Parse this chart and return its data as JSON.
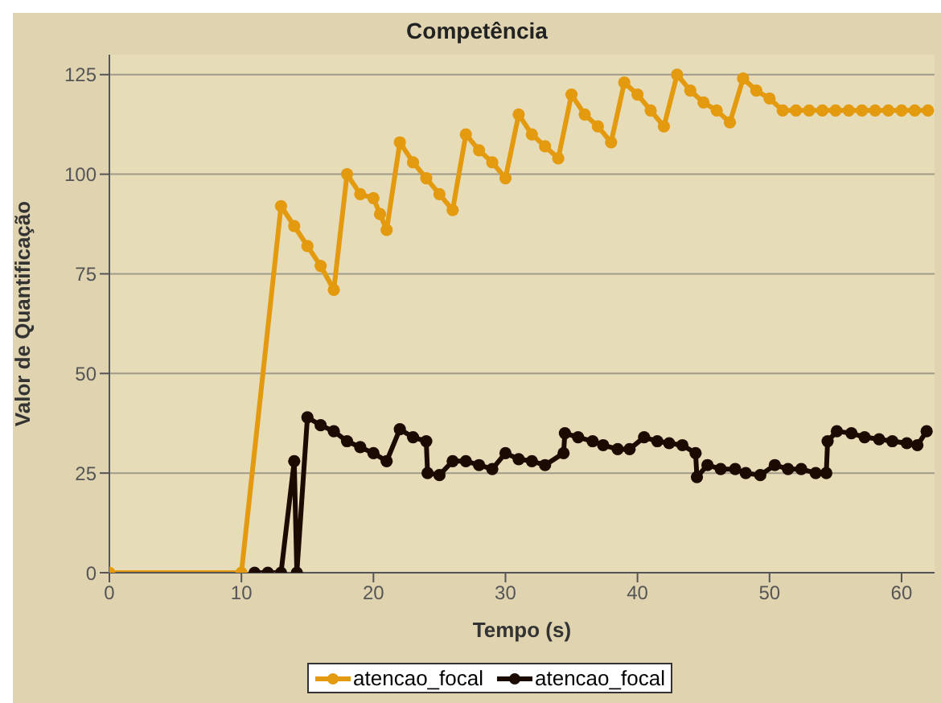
{
  "chart_data": {
    "type": "line",
    "title": "Competência",
    "xlabel": "Tempo (s)",
    "ylabel": "Valor de Quantificação",
    "xlim": [
      0,
      62.5
    ],
    "xticks": [
      0,
      10,
      20,
      30,
      40,
      50,
      60
    ],
    "ylim": [
      0,
      130
    ],
    "yticks": [
      0,
      25,
      50,
      75,
      100,
      125
    ],
    "grid": "y",
    "legend": "bottom",
    "marker": "circle",
    "line_style": "solid",
    "series": [
      {
        "name": "atencao_focal",
        "color": "#e39a0f",
        "x": [
          0,
          10,
          13,
          14,
          15,
          16,
          17,
          18,
          19,
          20,
          20.5,
          21,
          22,
          23,
          24,
          25,
          26,
          27,
          28,
          29,
          30,
          31,
          32,
          33,
          34,
          35,
          36,
          37,
          38,
          39,
          40,
          41,
          42,
          43,
          44,
          45,
          46,
          47,
          48,
          49,
          50,
          51,
          52,
          53,
          54,
          55,
          56,
          57,
          58,
          59,
          60,
          61,
          62
        ],
        "values": [
          0,
          0,
          92,
          87,
          82,
          77,
          71,
          100,
          95,
          94,
          90,
          86,
          108,
          103,
          99,
          95,
          91,
          110,
          106,
          103,
          99,
          115,
          110,
          107,
          104,
          120,
          115,
          112,
          108,
          123,
          120,
          116,
          112,
          125,
          121,
          118,
          116,
          113,
          124,
          121,
          119,
          116,
          116,
          116,
          116,
          116,
          116,
          116,
          116,
          116,
          116,
          116,
          116
        ]
      },
      {
        "name": "atencao_focal",
        "color": "#1a0a00",
        "x": [
          11,
          12,
          13,
          14,
          14.2,
          15,
          16,
          17,
          18,
          19,
          20,
          21,
          22,
          23,
          24,
          24.1,
          25,
          26,
          27,
          28,
          29,
          30,
          31,
          32,
          33,
          34.4,
          34.5,
          35.5,
          36.6,
          37.4,
          38.5,
          39.4,
          40.5,
          41.5,
          42.4,
          43.4,
          44.4,
          44.5,
          45.3,
          46.3,
          47.4,
          48.2,
          49.3,
          50.4,
          51.4,
          52.4,
          53.5,
          54.3,
          54.4,
          55.1,
          56.2,
          57.2,
          58.3,
          59.3,
          60.4,
          61.2,
          61.9
        ],
        "values": [
          0,
          0,
          0,
          28,
          0,
          39,
          37,
          35.5,
          33,
          31.5,
          30,
          28,
          36,
          34,
          33,
          25,
          24.5,
          28,
          28,
          27,
          26,
          30,
          28.5,
          28,
          27,
          30,
          35,
          34,
          33,
          32,
          31,
          31,
          34,
          33,
          32.5,
          32,
          30,
          24,
          27,
          26,
          26,
          25,
          24.5,
          27,
          26,
          26,
          25,
          25,
          33,
          35.5,
          35,
          34,
          33.5,
          33,
          32.5,
          32,
          35.5
        ]
      }
    ]
  }
}
